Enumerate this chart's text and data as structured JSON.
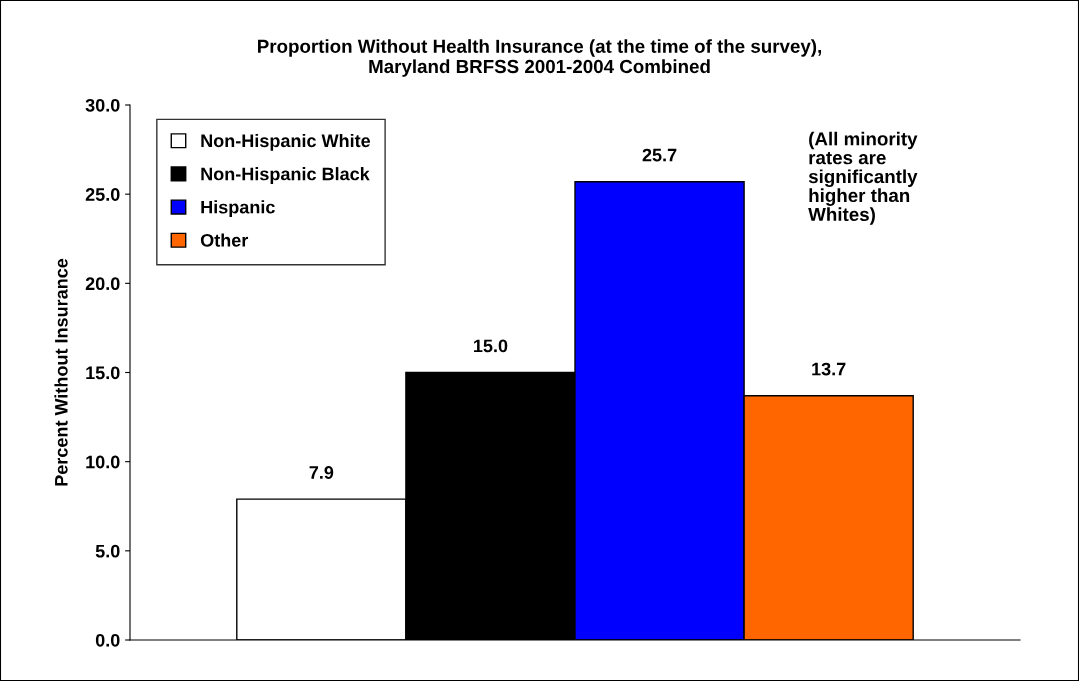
{
  "chart_data": {
    "type": "bar",
    "title": "Proportion Without Health Insurance (at the time of the survey),\nMaryland BRFSS 2001-2004 Combined",
    "ylabel": "Percent Without Insurance",
    "categories": [
      null
    ],
    "series": [
      {
        "name": "Non-Hispanic White",
        "color": "#ffffff",
        "values": [
          7.9
        ]
      },
      {
        "name": "Non-Hispanic Black",
        "color": "#000000",
        "values": [
          15.0
        ]
      },
      {
        "name": "Hispanic",
        "color": "#0000ff",
        "values": [
          25.7
        ]
      },
      {
        "name": "Other",
        "color": "#ff6600",
        "values": [
          13.7
        ]
      }
    ],
    "ylim": [
      0,
      30
    ],
    "yticks": [
      {
        "value": 0,
        "label": "0.0"
      },
      {
        "value": 5,
        "label": "5.0"
      },
      {
        "value": 10,
        "label": "10.0"
      },
      {
        "value": 15,
        "label": "15.0"
      },
      {
        "value": 20,
        "label": "20.0"
      },
      {
        "value": 25,
        "label": "25.0"
      },
      {
        "value": 30,
        "label": "30.0"
      }
    ],
    "value_labels": [
      "7.9",
      "15.0",
      "25.7",
      "13.7"
    ],
    "annotations": [
      "(All minority\nrates are\nsignificantly\nhigher than\nWhites)"
    ],
    "legend": "top left",
    "grid": false
  }
}
